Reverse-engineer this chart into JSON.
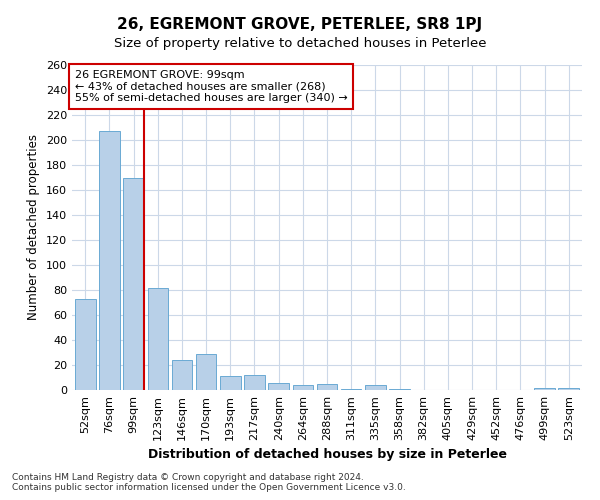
{
  "title": "26, EGREMONT GROVE, PETERLEE, SR8 1PJ",
  "subtitle": "Size of property relative to detached houses in Peterlee",
  "xlabel": "Distribution of detached houses by size in Peterlee",
  "ylabel": "Number of detached properties",
  "footnote1": "Contains HM Land Registry data © Crown copyright and database right 2024.",
  "footnote2": "Contains public sector information licensed under the Open Government Licence v3.0.",
  "categories": [
    "52sqm",
    "76sqm",
    "99sqm",
    "123sqm",
    "146sqm",
    "170sqm",
    "193sqm",
    "217sqm",
    "240sqm",
    "264sqm",
    "288sqm",
    "311sqm",
    "335sqm",
    "358sqm",
    "382sqm",
    "405sqm",
    "429sqm",
    "452sqm",
    "476sqm",
    "499sqm",
    "523sqm"
  ],
  "values": [
    73,
    207,
    170,
    82,
    24,
    29,
    11,
    12,
    6,
    4,
    5,
    1,
    4,
    1,
    0,
    0,
    0,
    0,
    0,
    2,
    2
  ],
  "bar_color": "#b8d0e8",
  "bar_edge_color": "#6aaad4",
  "highlight_index": 2,
  "highlight_line_color": "#cc0000",
  "ylim": [
    0,
    260
  ],
  "yticks": [
    0,
    20,
    40,
    60,
    80,
    100,
    120,
    140,
    160,
    180,
    200,
    220,
    240,
    260
  ],
  "annotation_text": "26 EGREMONT GROVE: 99sqm\n← 43% of detached houses are smaller (268)\n55% of semi-detached houses are larger (340) →",
  "annotation_box_color": "#ffffff",
  "annotation_box_edge": "#cc0000",
  "bg_color": "#ffffff",
  "grid_color": "#ccd8e8",
  "title_fontsize": 11,
  "subtitle_fontsize": 9.5,
  "xlabel_fontsize": 9,
  "ylabel_fontsize": 8.5,
  "tick_fontsize": 8,
  "annot_fontsize": 8,
  "footnote_fontsize": 6.5
}
